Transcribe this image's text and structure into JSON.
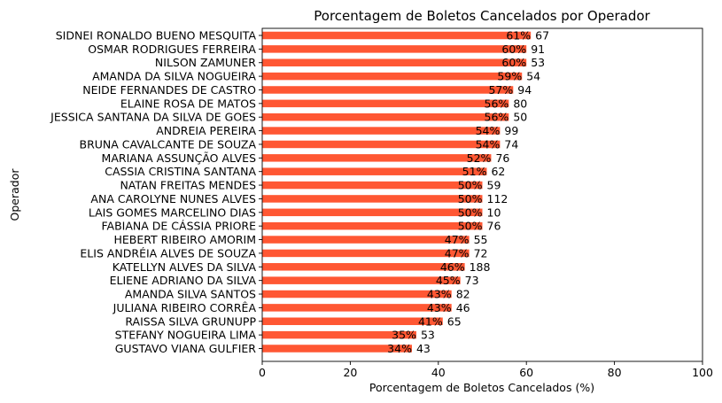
{
  "chart_data": {
    "type": "bar",
    "orientation": "horizontal",
    "title": "Porcentagem de Boletos Cancelados por Operador",
    "xlabel": "Porcentagem de Boletos Cancelados (%)",
    "ylabel": "Operador",
    "xlim": [
      0,
      100
    ],
    "xticks": [
      "0",
      "20",
      "40",
      "60",
      "80",
      "100"
    ],
    "bar_color": "#ff5733",
    "grid": false,
    "categories": [
      "SIDNEI RONALDO BUENO MESQUITA",
      "OSMAR RODRIGUES FERREIRA",
      "NILSON ZAMUNER",
      "AMANDA DA SILVA NOGUEIRA",
      "NEIDE FERNANDES DE CASTRO",
      "ELAINE ROSA DE MATOS",
      "JESSICA SANTANA DA SILVA DE GOES",
      "ANDREIA PEREIRA",
      "BRUNA CAVALCANTE DE SOUZA",
      "MARIANA ASSUNÇÃO ALVES",
      "CASSIA CRISTINA SANTANA",
      "NATAN FREITAS MENDES",
      "ANA CAROLYNE NUNES ALVES",
      "LAIS GOMES MARCELINO DIAS",
      "FABIANA DE CÁSSIA PRIORE",
      "HEBERT RIBEIRO AMORIM",
      "ELIS ANDRÉIA ALVES DE SOUZA",
      "KATELLYN ALVES DA SILVA",
      "ELIENE ADRIANO DA SILVA",
      "AMANDA SILVA SANTOS",
      "JULIANA RIBEIRO CORRÊA",
      "RAISSA SILVA GRUNUPP",
      "STEFANY NOGUEIRA LIMA",
      "GUSTAVO VIANA GULFIER"
    ],
    "values": [
      61,
      60,
      60,
      59,
      57,
      56,
      56,
      54,
      54,
      52,
      51,
      50,
      50,
      50,
      50,
      47,
      47,
      46,
      45,
      43,
      43,
      41,
      35,
      34
    ],
    "percent_labels": [
      "61%",
      "60%",
      "60%",
      "59%",
      "57%",
      "56%",
      "56%",
      "54%",
      "54%",
      "52%",
      "51%",
      "50%",
      "50%",
      "50%",
      "50%",
      "47%",
      "47%",
      "46%",
      "45%",
      "43%",
      "43%",
      "41%",
      "35%",
      "34%"
    ],
    "count_labels": [
      "67",
      "91",
      "53",
      "54",
      "94",
      "80",
      "50",
      "99",
      "74",
      "76",
      "62",
      "59",
      "112",
      "10",
      "76",
      "55",
      "72",
      "188",
      "73",
      "82",
      "46",
      "65",
      "53",
      "43"
    ]
  }
}
